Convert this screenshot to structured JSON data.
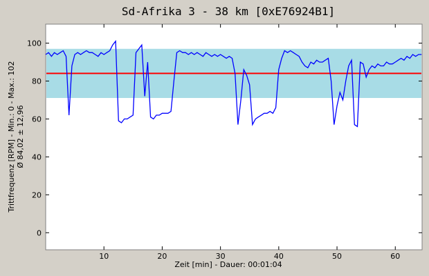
{
  "chart_data": {
    "type": "line",
    "title": "Sd-Afrika 3 - 38 km [0xE76924B1]",
    "x_label": "Zeit [min] - Dauer: 00:01:04",
    "y_label": "Trittfrequenz [RPM] - Min.: 0 - Max.: 102",
    "y_label_2": "Ø 84,02 ± 12,96",
    "mean_line": 84.02,
    "mean_color": "#ff0000",
    "band": [
      71.06,
      96.98
    ],
    "band_color": "#a8dce6",
    "xlim": [
      0,
      64.6
    ],
    "ylim": [
      -9,
      110
    ],
    "xticks": [
      10,
      20,
      30,
      40,
      50,
      60
    ],
    "yticks": [
      0,
      20,
      40,
      60,
      80,
      100
    ],
    "x": [
      0,
      0.5,
      1,
      1.5,
      2,
      2.5,
      3,
      3.5,
      4,
      4.5,
      5,
      5.5,
      6,
      6.5,
      7,
      7.5,
      8,
      8.5,
      9,
      9.5,
      10,
      10.5,
      11,
      11.5,
      12,
      12.5,
      13,
      13.5,
      14,
      14.5,
      15,
      15.5,
      16,
      16.5,
      17,
      17.5,
      18,
      18.5,
      19,
      19.5,
      20,
      20.5,
      21,
      21.5,
      22,
      22.5,
      23,
      23.5,
      24,
      24.5,
      25,
      25.5,
      26,
      26.5,
      27,
      27.5,
      28,
      28.5,
      29,
      29.5,
      30,
      30.5,
      31,
      31.5,
      32,
      32.5,
      33,
      33.5,
      34,
      34.5,
      35,
      35.5,
      36,
      36.5,
      37,
      37.5,
      38,
      38.5,
      39,
      39.5,
      40,
      40.5,
      41,
      41.5,
      42,
      42.5,
      43,
      43.5,
      44,
      44.5,
      45,
      45.5,
      46,
      46.5,
      47,
      47.5,
      48,
      48.5,
      49,
      49.5,
      50,
      50.5,
      51,
      51.5,
      52,
      52.5,
      53,
      53.5,
      54,
      54.5,
      55,
      55.5,
      56,
      56.5,
      57,
      57.5,
      58,
      58.5,
      59,
      59.5,
      60,
      60.5,
      61,
      61.5,
      62,
      62.5,
      63,
      63.5,
      64,
      64.5
    ],
    "series": [
      {
        "name": "Trittfrequenz",
        "color": "#0000ff",
        "values": [
          94,
          95,
          93,
          95,
          94,
          95,
          96,
          93,
          62,
          88,
          94,
          95,
          94,
          95,
          96,
          95,
          95,
          94,
          93,
          95,
          94,
          95,
          96,
          99,
          101,
          59,
          58,
          60,
          60,
          61,
          62,
          95,
          97,
          99,
          72,
          90,
          61,
          60,
          62,
          62,
          63,
          63,
          63,
          64,
          80,
          95,
          96,
          95,
          95,
          94,
          95,
          94,
          95,
          94,
          93,
          95,
          94,
          93,
          94,
          93,
          94,
          93,
          92,
          93,
          92,
          84,
          57,
          70,
          86,
          83,
          78,
          57,
          60,
          61,
          62,
          63,
          63,
          64,
          63,
          66,
          86,
          92,
          96,
          95,
          96,
          95,
          94,
          93,
          90,
          88,
          87,
          90,
          89,
          91,
          90,
          90,
          91,
          92,
          80,
          57,
          67,
          74,
          70,
          80,
          88,
          91,
          57,
          56,
          90,
          89,
          82,
          86,
          88,
          87,
          89,
          88,
          88,
          90,
          89,
          89,
          90,
          91,
          92,
          91,
          93,
          92,
          94,
          93,
          94,
          94
        ]
      }
    ]
  }
}
